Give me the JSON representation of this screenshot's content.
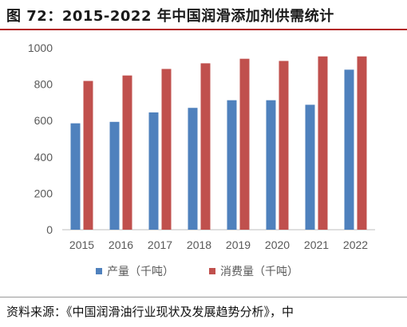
{
  "header": {
    "title": "图 72：2015-2022 年中国润滑添加剂供需统计"
  },
  "footer": {
    "source": "资料来源：《中国润滑油行业现状及发展趋势分析》，中"
  },
  "chart_data": {
    "type": "bar",
    "categories": [
      "2015",
      "2016",
      "2017",
      "2018",
      "2019",
      "2020",
      "2021",
      "2022"
    ],
    "series": [
      {
        "name": "产量（千吨）",
        "color": "#4f81bd",
        "values": [
          585,
          593,
          645,
          670,
          712,
          712,
          687,
          880
        ]
      },
      {
        "name": "消费量（千吨）",
        "color": "#c0504d",
        "values": [
          818,
          848,
          884,
          915,
          940,
          928,
          953,
          953
        ]
      }
    ],
    "yticks": [
      "0",
      "200",
      "400",
      "600",
      "800",
      "1000"
    ],
    "ylim": [
      0,
      1000
    ],
    "grid": false,
    "legend_position": "bottom"
  }
}
